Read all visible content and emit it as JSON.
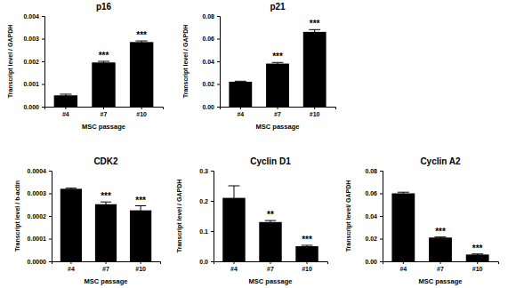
{
  "chart_data": [
    {
      "type": "bar",
      "title": "p16",
      "x_label": "MSC passage",
      "y_label": "Transcript level / GAPDH",
      "categories": [
        "#4",
        "#7",
        "#10"
      ],
      "values": [
        0.0005,
        0.00195,
        0.00285
      ],
      "errors": [
        5e-05,
        5e-05,
        5e-05
      ],
      "significance": [
        null,
        "***",
        "***"
      ],
      "color": "#000000",
      "ylim": [
        0,
        0.004
      ],
      "yticks": [
        {
          "value": 0,
          "label": "0.000"
        },
        {
          "value": 0.001,
          "label": "0.001"
        },
        {
          "value": 0.002,
          "label": "0.002"
        },
        {
          "value": 0.003,
          "label": "0.003"
        },
        {
          "value": 0.004,
          "label": "0.004"
        }
      ]
    },
    {
      "type": "bar",
      "title": "p21",
      "x_label": "MSC passage",
      "y_label": "Transcript level / GAPDH",
      "categories": [
        "#4",
        "#7",
        "#10"
      ],
      "values": [
        0.022,
        0.038,
        0.066
      ],
      "errors": [
        0.0005,
        0.001,
        0.002
      ],
      "significance": [
        null,
        "***",
        "***"
      ],
      "color": "#000000",
      "ylim": [
        0,
        0.08
      ],
      "yticks": [
        {
          "value": 0,
          "label": "0.00"
        },
        {
          "value": 0.02,
          "label": "0.02"
        },
        {
          "value": 0.04,
          "label": "0.04"
        },
        {
          "value": 0.06,
          "label": "0.06"
        },
        {
          "value": 0.08,
          "label": "0.08"
        }
      ]
    },
    {
      "type": "bar",
      "title": "CDK2",
      "x_label": "MSC passage",
      "y_label": "Transcript level / b-actin",
      "categories": [
        "#4",
        "#7",
        "#10"
      ],
      "values": [
        0.00032,
        0.000252,
        0.000225
      ],
      "errors": [
        3e-06,
        1e-05,
        2e-05
      ],
      "significance": [
        null,
        "***",
        "***"
      ],
      "color": "#000000",
      "ylim": [
        0,
        0.0004
      ],
      "yticks": [
        {
          "value": 0,
          "label": "0.0000"
        },
        {
          "value": 0.0001,
          "label": "0.0001"
        },
        {
          "value": 0.0002,
          "label": "0.0002"
        },
        {
          "value": 0.0003,
          "label": "0.0003"
        },
        {
          "value": 0.0004,
          "label": "0.0004"
        }
      ]
    },
    {
      "type": "bar",
      "title": "Cyclin D1",
      "x_label": "MSC passage",
      "y_label": "Transcript level / GAPDH",
      "categories": [
        "#4",
        "#7",
        "#10"
      ],
      "values": [
        0.21,
        0.13,
        0.05
      ],
      "errors": [
        0.04,
        0.005,
        0.003
      ],
      "significance": [
        null,
        "**",
        "***"
      ],
      "color": "#000000",
      "ylim": [
        0,
        0.3
      ],
      "yticks": [
        {
          "value": 0,
          "label": "0.0"
        },
        {
          "value": 0.1,
          "label": "0.1"
        },
        {
          "value": 0.2,
          "label": "0.2"
        },
        {
          "value": 0.3,
          "label": "0.3"
        }
      ]
    },
    {
      "type": "bar",
      "title": "Cyclin A2",
      "x_label": "MSC passage",
      "y_label": "Transcript level/ GAPDH",
      "categories": [
        "#4",
        "#7",
        "#10"
      ],
      "values": [
        0.06,
        0.021,
        0.006
      ],
      "errors": [
        0.001,
        0.0005,
        0.0005
      ],
      "significance": [
        null,
        "***",
        "***"
      ],
      "color": "#000000",
      "ylim": [
        0,
        0.08
      ],
      "yticks": [
        {
          "value": 0,
          "label": "0.00"
        },
        {
          "value": 0.02,
          "label": "0.02"
        },
        {
          "value": 0.04,
          "label": "0.04"
        },
        {
          "value": 0.06,
          "label": "0.06"
        },
        {
          "value": 0.08,
          "label": "0.08"
        }
      ]
    }
  ]
}
